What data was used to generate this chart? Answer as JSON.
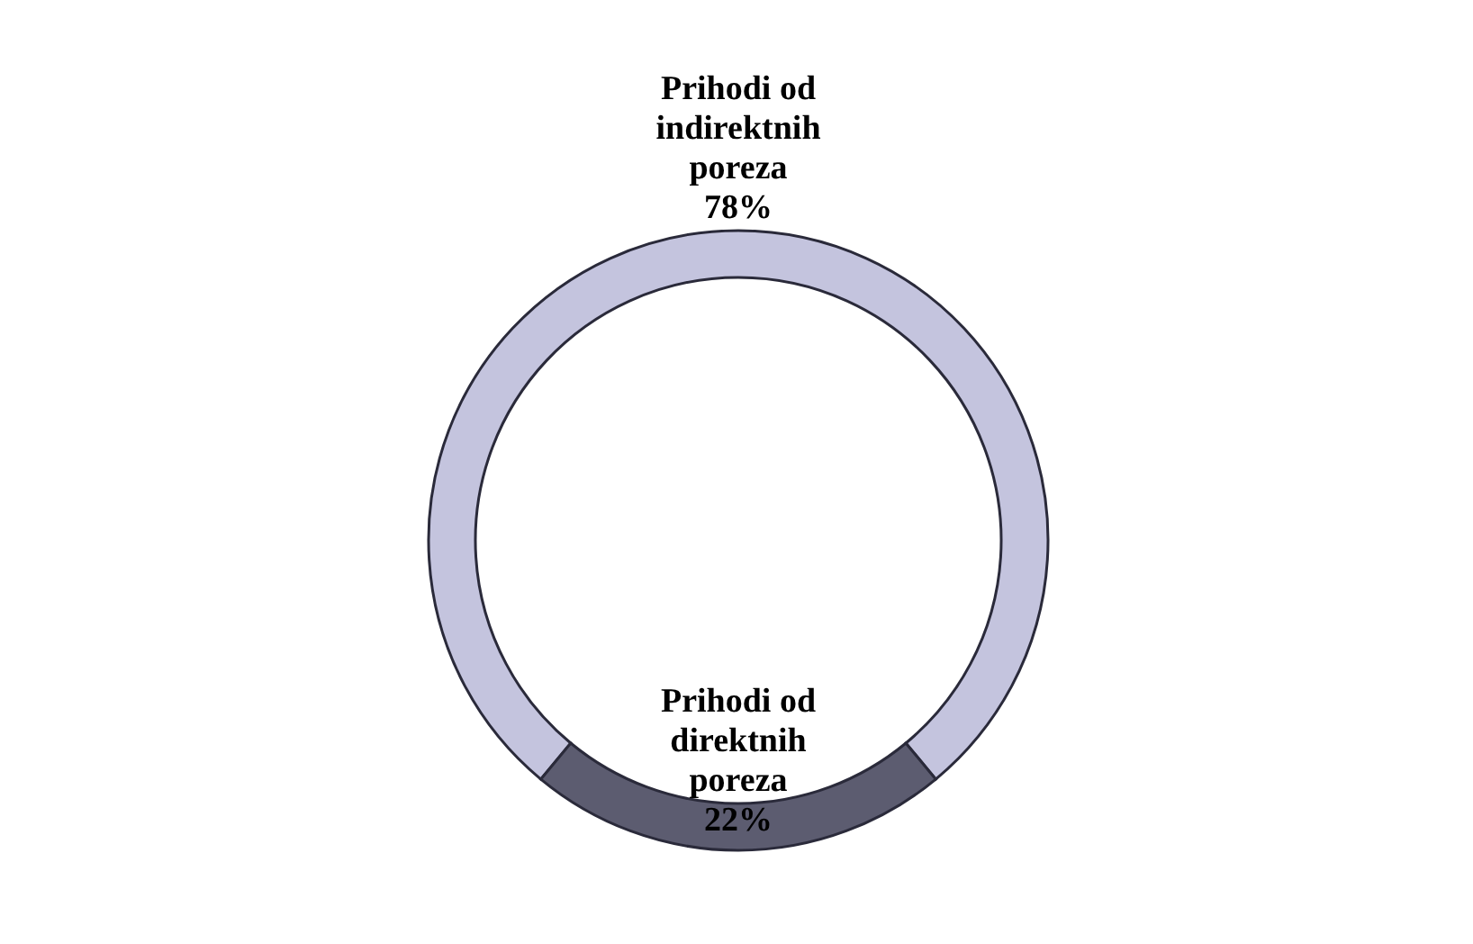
{
  "chart_data": {
    "type": "donut",
    "categories": [
      "Prihodi od indirektnih poreza",
      "Prihodi od direktnih poreza"
    ],
    "values": [
      78,
      22
    ],
    "value_labels": [
      "78%",
      "22%"
    ],
    "colors": [
      "#c4c4de",
      "#5c5c70"
    ]
  }
}
